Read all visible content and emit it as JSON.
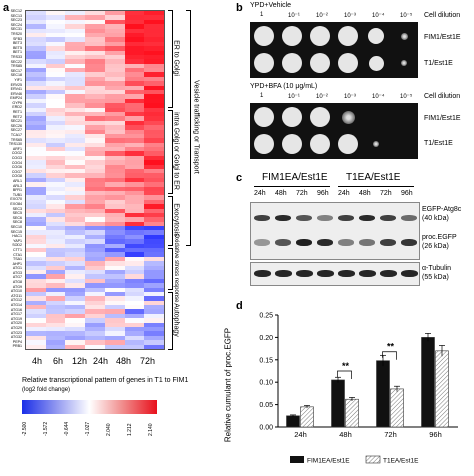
{
  "panels": {
    "a": "a",
    "b": "b",
    "c": "c",
    "d": "d"
  },
  "heatmap": {
    "columns": [
      "4h",
      "6h",
      "12h",
      "24h",
      "48h",
      "72h"
    ],
    "genes": [
      "SEC12",
      "SEC13",
      "SEC23",
      "SEC24",
      "SEC31",
      "TRS20",
      "SFB3",
      "BET3",
      "BET5",
      "BET1",
      "TRS33",
      "SEC22",
      "TRS85",
      "SEC17",
      "SEC18",
      "YIF1",
      "ERV25",
      "ERV41",
      "ERV46",
      "EMP24",
      "GYP6",
      "ERD2",
      "RET1",
      "RET2",
      "SEC21",
      "SEC26",
      "SEC27",
      "TCA17",
      "TRS65",
      "TRS130",
      "ARF1",
      "COG2",
      "COG3",
      "COG4",
      "COG6",
      "COG7",
      "COG8",
      "ARL1",
      "ARL3",
      "BFR1",
      "TUB1",
      "EXO70",
      "EXO84",
      "SEC3",
      "SEC5",
      "SEC6",
      "SEC8",
      "SEC10",
      "SEC15",
      "HAC1",
      "YAP1",
      "SOD2",
      "CTT1",
      "CTA1",
      "TSA1",
      "AHP1",
      "ATG1",
      "ATG3",
      "ATG7",
      "ATG8",
      "ATG9",
      "ATG10",
      "ATG11",
      "ATG12",
      "ATG14",
      "ATG16",
      "ATG17",
      "ATG19",
      "ATG20",
      "ATG29",
      "ATG23",
      "ATG32",
      "PEP4",
      "PRB1"
    ],
    "groups": [
      "ER to Golgi",
      "intra Golgi or Golgi to ER",
      "Exocytosis",
      "Oxidative stress response",
      "Autophagy"
    ],
    "side_label": "Vesicle trafficking or Transport",
    "legend_title": "Relative transcriptional pattern of genes in T1 to FIM1",
    "legend_sub": "(log2 fold change)",
    "legend_ticks": [
      "-2.500",
      "-1.572",
      "-0.644",
      "-1.027",
      "2.040",
      "1.212",
      "2.140"
    ]
  },
  "spot_assay": {
    "top_title": "YPD+Vehicle",
    "bottom_title": "YPD+BFA (10 μg/mL)",
    "dilutions": [
      "1",
      "10⁻¹",
      "10⁻²",
      "10⁻³",
      "10⁻⁴",
      "10⁻⁵"
    ],
    "dilution_label": "Cell dilution",
    "strains": [
      "FIM1/Est1E",
      "T1/Est1E"
    ]
  },
  "western": {
    "group1": "FIM1EA/Est1E",
    "group2": "T1EA/Est1E",
    "times": [
      "24h",
      "48h",
      "72h",
      "96h",
      "24h",
      "48h",
      "72h",
      "96h"
    ],
    "labels": {
      "fusion": "EGFP-Atg8c",
      "fusion_kda": "(40 kDa)",
      "proc": "proc.EGFP",
      "proc_kda": "(26 kDa)",
      "tubulin": "α-Tubulin",
      "tubulin_kda": "(55 kDa)"
    }
  },
  "chart_data": {
    "type": "bar",
    "ylabel": "Relative cumulant of proc.EGFP",
    "categories": [
      "24h",
      "48h",
      "72h",
      "96h"
    ],
    "yticks": [
      "0.00",
      "0.05",
      "0.10",
      "0.15",
      "0.20",
      "0.25"
    ],
    "ylim": [
      0,
      0.25
    ],
    "series": [
      {
        "name": "FIM1EA/Est1E",
        "values": [
          0.025,
          0.105,
          0.148,
          0.2
        ]
      },
      {
        "name": "T1EA/Est1E",
        "values": [
          0.045,
          0.062,
          0.085,
          0.17
        ]
      }
    ],
    "significance": [
      "**",
      "**"
    ]
  }
}
